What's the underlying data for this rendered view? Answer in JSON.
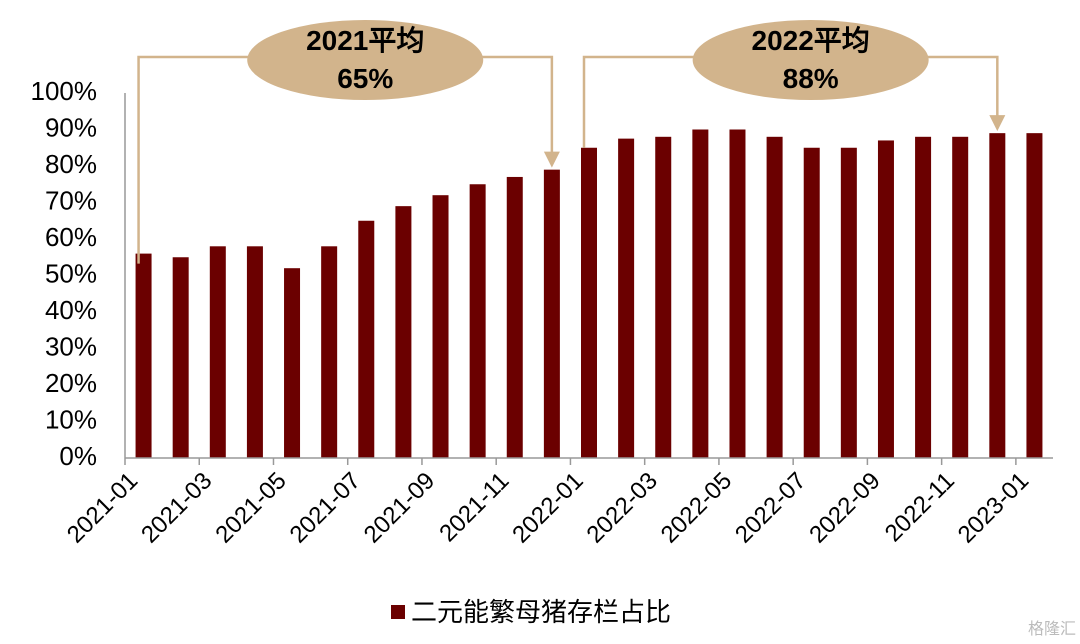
{
  "chart_data": {
    "type": "bar",
    "categories": [
      "2021-01",
      "2021-02",
      "2021-03",
      "2021-04",
      "2021-05",
      "2021-06",
      "2021-07",
      "2021-08",
      "2021-09",
      "2021-10",
      "2021-11",
      "2021-12",
      "2022-01",
      "2022-02",
      "2022-03",
      "2022-04",
      "2022-05",
      "2022-06",
      "2022-07",
      "2022-08",
      "2022-09",
      "2022-10",
      "2022-11",
      "2022-12",
      "2023-01"
    ],
    "tick_labels": [
      "2021-01",
      "2021-03",
      "2021-05",
      "2021-07",
      "2021-09",
      "2021-11",
      "2022-01",
      "2022-03",
      "2022-05",
      "2022-07",
      "2022-09",
      "2022-11",
      "2023-01"
    ],
    "series": [
      {
        "name": "二元能繁母猪存栏占比",
        "values": [
          56,
          55,
          58,
          58,
          52,
          58,
          65,
          69,
          72,
          75,
          77,
          79,
          85,
          87.5,
          88,
          90,
          90,
          88,
          85,
          85,
          87,
          88,
          88,
          89,
          89
        ]
      }
    ],
    "ylim": [
      0,
      100
    ],
    "y_ticks": [
      "0%",
      "10%",
      "20%",
      "30%",
      "40%",
      "50%",
      "60%",
      "70%",
      "80%",
      "90%",
      "100%"
    ],
    "legend_position": "bottom",
    "grid": false,
    "bar_color": "#6b0000",
    "annotations": [
      {
        "line1": "2021平均",
        "line2": "65%",
        "from_index": 0,
        "to_index": 11
      },
      {
        "line1": "2022平均",
        "line2": "88%",
        "from_index": 12,
        "to_index": 23
      }
    ],
    "callout_color": "#d2b48c",
    "watermark": "格隆汇"
  }
}
